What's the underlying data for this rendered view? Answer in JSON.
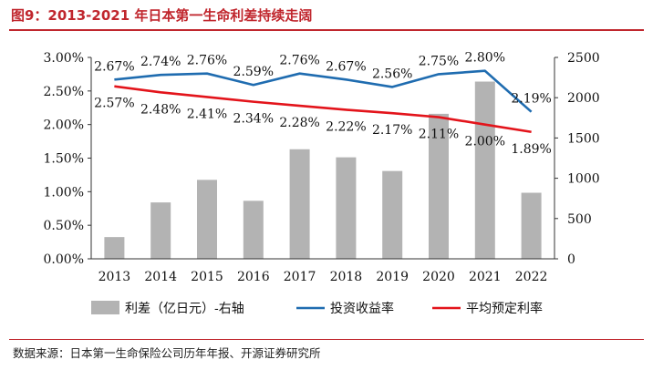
{
  "figure": {
    "title": "图9：2013-2021 年日本第一生命利差持续走阔",
    "source": "数据来源：日本第一生命保险公司历年年报、开源证券研究所"
  },
  "colors": {
    "accent": "#c0262d",
    "bar": "#b3b3b3",
    "investment_line": "#1f6cb0",
    "guaranteed_line": "#e3141b"
  },
  "chart_data": {
    "type": "bar+line",
    "categories": [
      "2013",
      "2014",
      "2015",
      "2016",
      "2017",
      "2018",
      "2019",
      "2020",
      "2021",
      "2022"
    ],
    "y_left": {
      "range": [
        0,
        3
      ],
      "unit": "%",
      "ticks": [
        "0.00%",
        "0.50%",
        "1.00%",
        "1.50%",
        "2.00%",
        "2.50%",
        "3.00%"
      ]
    },
    "y_right": {
      "range": [
        0,
        2500
      ],
      "ticks": [
        "0",
        "500",
        "1000",
        "1500",
        "2000",
        "2500"
      ]
    },
    "series": [
      {
        "name": "利差（亿日元）-右轴",
        "type": "bar",
        "axis": "right",
        "values": [
          270,
          700,
          980,
          720,
          1360,
          1260,
          1090,
          1800,
          2200,
          820
        ]
      },
      {
        "name": "投资收益率",
        "type": "line",
        "axis": "left",
        "values": [
          2.67,
          2.74,
          2.76,
          2.59,
          2.76,
          2.67,
          2.56,
          2.75,
          2.8,
          2.19
        ],
        "labels": [
          "2.67%",
          "2.74%",
          "2.76%",
          "2.59%",
          "2.76%",
          "2.67%",
          "2.56%",
          "2.75%",
          "2.80%",
          "2.19%"
        ]
      },
      {
        "name": "平均预定利率",
        "type": "line",
        "axis": "left",
        "values": [
          2.57,
          2.48,
          2.41,
          2.34,
          2.28,
          2.22,
          2.17,
          2.11,
          2.0,
          1.89
        ],
        "labels": [
          "2.57%",
          "2.48%",
          "2.41%",
          "2.34%",
          "2.28%",
          "2.22%",
          "2.17%",
          "2.11%",
          "2.00%",
          "1.89%"
        ]
      }
    ],
    "legend": "bottom"
  }
}
